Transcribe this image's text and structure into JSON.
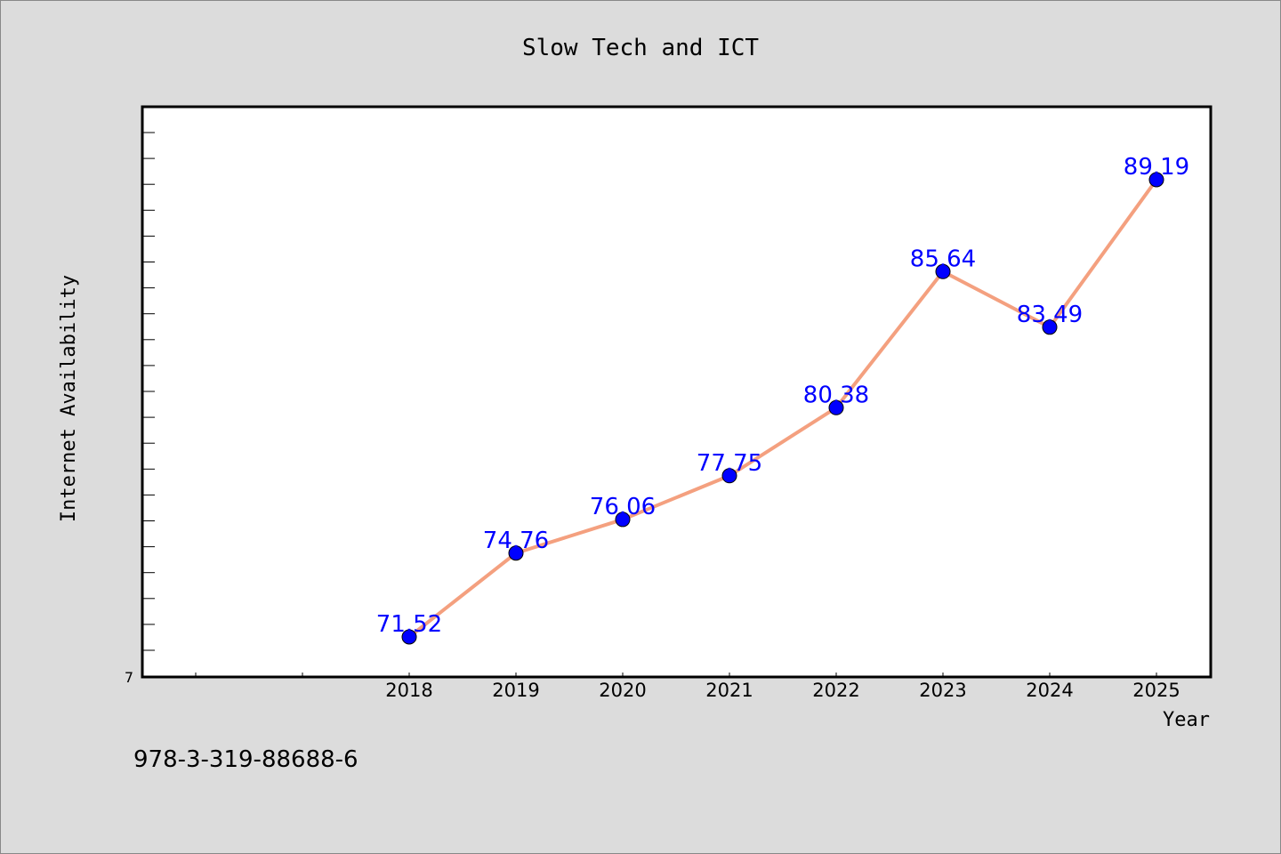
{
  "chart_data": {
    "type": "line",
    "title": "Slow Tech and ICT",
    "xlabel": "Year",
    "ylabel": "Internet Availability",
    "x": [
      "2018",
      "2019",
      "2020",
      "2021",
      "2022",
      "2023",
      "2024",
      "2025"
    ],
    "series": [
      {
        "values": [
          71.52,
          74.76,
          76.06,
          77.75,
          80.38,
          85.64,
          83.49,
          89.19
        ],
        "line_color": "#f4a07f",
        "marker_color": "#0000ff",
        "label_color": "#0000ff"
      }
    ],
    "y_tick_labels": [
      "7"
    ],
    "ylim": [
      71,
      92
    ],
    "grid": false,
    "legend": "none"
  },
  "footer_text": "978-3-319-88688-6"
}
